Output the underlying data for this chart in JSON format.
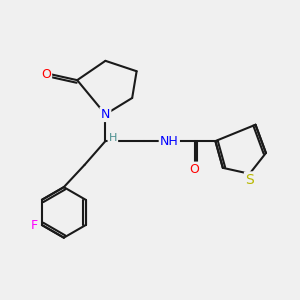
{
  "background_color": "#f0f0f0",
  "bond_color": "#1a1a1a",
  "atom_colors": {
    "N": "#0000ff",
    "O": "#ff0000",
    "F": "#ff00ff",
    "S": "#b8b800",
    "H": "#4a9090",
    "C": "#1a1a1a"
  },
  "font_size": 9,
  "fig_size": [
    3.0,
    3.0
  ],
  "dpi": 100
}
